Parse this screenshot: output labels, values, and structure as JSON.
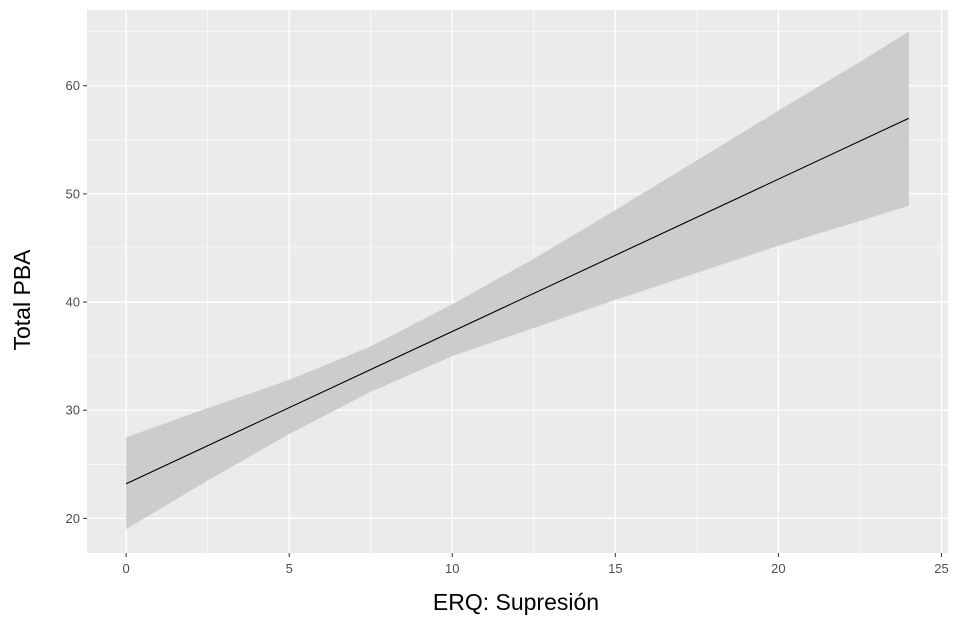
{
  "chart_data": {
    "type": "line",
    "title": "",
    "xlabel": "ERQ: Supresión",
    "ylabel": "Total PBA",
    "xlim": [
      -1.2,
      25.2
    ],
    "ylim": [
      16.8,
      67.0
    ],
    "x_ticks": [
      0,
      5,
      10,
      15,
      20,
      25
    ],
    "y_ticks": [
      20,
      30,
      40,
      50,
      60
    ],
    "x_tick_labels": [
      "0",
      "5",
      "10",
      "15",
      "20",
      "25"
    ],
    "y_tick_labels": [
      "20",
      "30",
      "40",
      "50",
      "60"
    ],
    "grid": true,
    "legend": "none",
    "series": [
      {
        "kind": "line",
        "x": [
          0,
          24
        ],
        "y": [
          23.2,
          57.0
        ]
      },
      {
        "kind": "ribbon",
        "x": [
          0,
          2.5,
          5,
          7.5,
          10,
          12.5,
          15,
          17.5,
          20,
          22.5,
          24
        ],
        "lower": [
          19.0,
          23.5,
          27.8,
          31.7,
          35.0,
          37.6,
          40.2,
          42.7,
          45.2,
          47.5,
          48.9
        ],
        "upper": [
          27.5,
          30.2,
          32.8,
          35.9,
          39.8,
          44.0,
          48.5,
          53.1,
          57.7,
          62.2,
          65.0
        ]
      }
    ],
    "colors": {
      "panel_background": "#ebebeb",
      "grid_major": "#ffffff",
      "ribbon_fill": "#cccccc",
      "line": "#000000",
      "tick_label": "#4d4d4d",
      "tick_mark": "#333333",
      "axis_title": "#000000"
    }
  }
}
